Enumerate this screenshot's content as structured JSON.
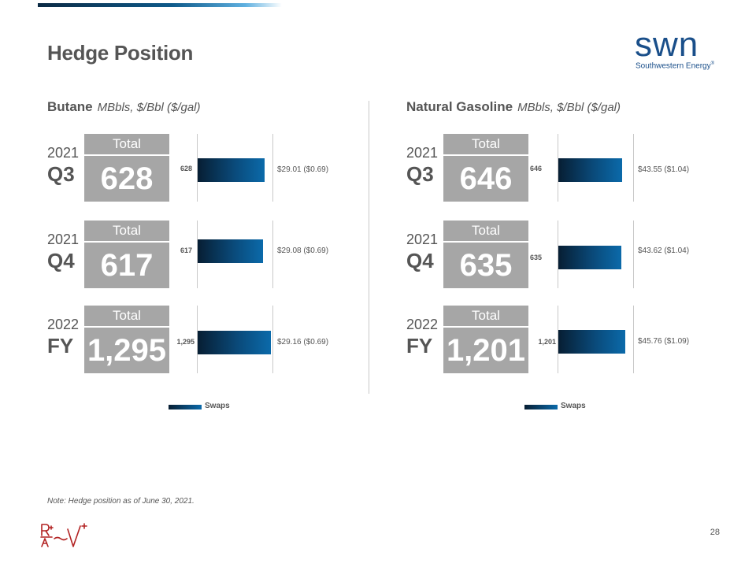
{
  "title": "Hedge Position",
  "logo": {
    "wordmark": "swn",
    "subtitle": "Southwestern Energy",
    "registered": "®"
  },
  "butane": {
    "heading": "Butane",
    "units": "MBbls, $/Bbl ($/gal)",
    "total_label": "Total",
    "legend": "Swaps",
    "rows": [
      {
        "year": "2021",
        "period": "Q3",
        "total": "628",
        "bar_label": "628",
        "price": "$29.01 ($0.69)"
      },
      {
        "year": "2021",
        "period": "Q4",
        "total": "617",
        "bar_label": "617",
        "price": "$29.08 ($0.69)"
      },
      {
        "year": "2022",
        "period": "FY",
        "total": "1,295",
        "bar_label": "1,295",
        "price": "$29.16 ($0.69)"
      }
    ]
  },
  "natural_gasoline": {
    "heading": "Natural Gasoline",
    "units": "MBbls, $/Bbl ($/gal)",
    "total_label": "Total",
    "legend": "Swaps",
    "rows": [
      {
        "year": "2021",
        "period": "Q3",
        "total": "646",
        "bar_label": "646",
        "price": "$43.55 ($1.04)"
      },
      {
        "year": "2021",
        "period": "Q4",
        "total": "635",
        "bar_label": "635",
        "price": "$43.62 ($1.04)"
      },
      {
        "year": "2022",
        "period": "FY",
        "total": "1,201",
        "bar_label": "1,201",
        "price": "$45.76 ($1.09)"
      }
    ]
  },
  "note": "Note: Hedge position as of June 30, 2021.",
  "page_number": "28"
}
